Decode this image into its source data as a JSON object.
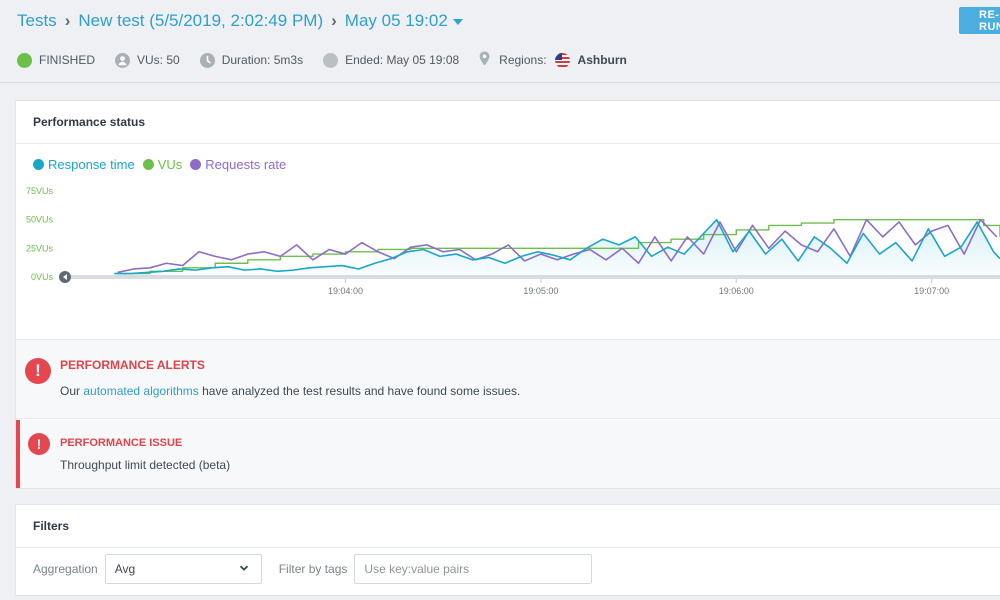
{
  "breadcrumb": {
    "root": "Tests",
    "test": "New test (5/5/2019, 2:02:49 PM)",
    "run": "May 05 19:02"
  },
  "toolbar": {
    "rerun_label": "RE-RUN"
  },
  "status": {
    "state": "FINISHED",
    "vus": "VUs: 50",
    "duration": "Duration: 5m3s",
    "ended": "Ended: May 05 19:08",
    "regions_label": "Regions:",
    "region": "Ashburn",
    "colors": {
      "finished": "#6cc04a",
      "icon": "#a9b1b8"
    }
  },
  "performance": {
    "title": "Performance status",
    "legend": [
      {
        "label": "Response time",
        "color": "#1aa7c7"
      },
      {
        "label": "VUs",
        "color": "#6cc04a"
      },
      {
        "label": "Requests rate",
        "color": "#8e6cc8"
      }
    ]
  },
  "chart_data": {
    "type": "line",
    "y_ticks": [
      "75VUs",
      "50VUs",
      "25VUs",
      "0VUs"
    ],
    "y_values": [
      75,
      50,
      25,
      0
    ],
    "x_ticks": [
      "19:04:00",
      "19:05:00",
      "19:06:00",
      "19:07:00"
    ],
    "x_tick_seconds": [
      60,
      120,
      180,
      240
    ],
    "xlim": [
      -16,
      261
    ],
    "ylim": [
      0,
      75
    ],
    "grid": false,
    "series": [
      {
        "name": "VUs",
        "color": "#6cc04a",
        "step": true,
        "x": [
          -10,
          0,
          10,
          20,
          30,
          40,
          50,
          60,
          70,
          80,
          90,
          100,
          110,
          120,
          130,
          140,
          150,
          160,
          170,
          180,
          190,
          200,
          210,
          220,
          230,
          240,
          250,
          256,
          261
        ],
        "values": [
          3,
          5,
          8,
          12,
          15,
          18,
          20,
          22,
          24,
          25,
          25,
          25,
          25,
          25,
          25,
          25,
          30,
          33,
          37,
          41,
          45,
          47,
          50,
          50,
          50,
          50,
          50,
          45,
          35
        ]
      },
      {
        "name": "Response time",
        "color": "#1aa7c7",
        "x": [
          -11,
          -6,
          -1,
          4,
          9,
          14,
          19,
          24,
          29,
          34,
          39,
          44,
          49,
          54,
          59,
          64,
          69,
          74,
          79,
          84,
          89,
          94,
          99,
          104,
          109,
          114,
          119,
          124,
          129,
          134,
          139,
          144,
          149,
          154,
          159,
          164,
          169,
          174,
          179,
          184,
          189,
          194,
          199,
          204,
          209,
          214,
          219,
          224,
          229,
          234,
          239,
          244,
          249,
          254,
          259,
          261
        ],
        "values": [
          3,
          3,
          4,
          5,
          7,
          6,
          8,
          9,
          6,
          7,
          5,
          6,
          8,
          9,
          10,
          7,
          12,
          16,
          22,
          24,
          18,
          20,
          15,
          17,
          12,
          18,
          22,
          19,
          15,
          25,
          33,
          28,
          35,
          18,
          26,
          20,
          35,
          50,
          22,
          40,
          20,
          33,
          14,
          35,
          25,
          12,
          38,
          20,
          30,
          14,
          42,
          18,
          26,
          48,
          22,
          16
        ]
      },
      {
        "name": "Requests rate",
        "color": "#8e6cc8",
        "x": [
          -10,
          -5,
          0,
          5,
          10,
          15,
          20,
          25,
          30,
          35,
          40,
          45,
          50,
          55,
          60,
          65,
          70,
          75,
          80,
          85,
          90,
          95,
          100,
          105,
          110,
          115,
          120,
          125,
          130,
          135,
          140,
          145,
          150,
          155,
          160,
          165,
          170,
          175,
          180,
          185,
          190,
          195,
          200,
          205,
          210,
          215,
          220,
          225,
          230,
          235,
          240,
          245,
          250,
          255,
          260
        ],
        "values": [
          4,
          7,
          8,
          12,
          10,
          22,
          18,
          15,
          20,
          22,
          18,
          28,
          15,
          24,
          20,
          30,
          22,
          16,
          26,
          28,
          22,
          24,
          15,
          20,
          28,
          14,
          20,
          15,
          20,
          24,
          15,
          25,
          12,
          35,
          14,
          35,
          20,
          48,
          22,
          45,
          25,
          40,
          28,
          22,
          42,
          18,
          50,
          35,
          48,
          28,
          40,
          45,
          20,
          50,
          35
        ]
      }
    ]
  },
  "alerts": {
    "title": "PERFORMANCE ALERTS",
    "text_before": "Our",
    "link": "automated algorithms",
    "text_after": "have analyzed the test results and have found some issues."
  },
  "issue": {
    "title": "PERFORMANCE ISSUE",
    "text": "Throughput limit detected (beta)"
  },
  "filters": {
    "title": "Filters",
    "aggregation_label": "Aggregation",
    "aggregation_value": "Avg",
    "tags_label": "Filter by tags",
    "tags_placeholder": "Use key:value pairs",
    "tags_value": ""
  }
}
